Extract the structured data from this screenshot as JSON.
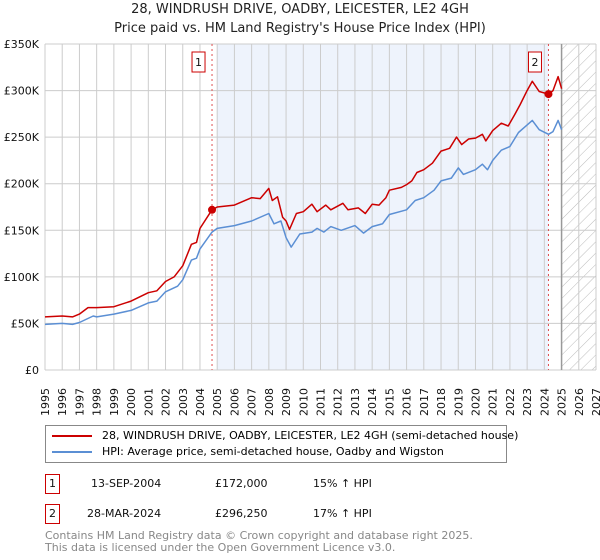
{
  "title": "28, WINDRUSH DRIVE, OADBY, LEICESTER, LE2 4GH",
  "subtitle": "Price paid vs. HM Land Registry's House Price Index (HPI)",
  "colors": {
    "property": "#cc0000",
    "hpi": "#5b8fd4",
    "shade": "#eef3fc"
  },
  "chart_data": {
    "type": "line",
    "title": "28, WINDRUSH DRIVE, OADBY, LEICESTER, LE2 4GH",
    "xlim": [
      1995,
      2027
    ],
    "ylim": [
      0,
      350000
    ],
    "y_ticks": [
      {
        "v": 0,
        "l": "£0"
      },
      {
        "v": 50000,
        "l": "£50K"
      },
      {
        "v": 100000,
        "l": "£100K"
      },
      {
        "v": 150000,
        "l": "£150K"
      },
      {
        "v": 200000,
        "l": "£200K"
      },
      {
        "v": 250000,
        "l": "£250K"
      },
      {
        "v": 300000,
        "l": "£300K"
      },
      {
        "v": 350000,
        "l": "£350K"
      }
    ],
    "x_ticks": [
      "1995",
      "1996",
      "1997",
      "1998",
      "1999",
      "2000",
      "2001",
      "2002",
      "2003",
      "2004",
      "2005",
      "2006",
      "2007",
      "2008",
      "2009",
      "2010",
      "2011",
      "2012",
      "2013",
      "2014",
      "2015",
      "2016",
      "2017",
      "2018",
      "2019",
      "2020",
      "2021",
      "2022",
      "2023",
      "2024",
      "2025",
      "2026",
      "2027"
    ],
    "shaded_range": [
      2005.0,
      2024.24
    ],
    "forecast_hatch_from": 2025.0,
    "series": [
      {
        "name": "28, WINDRUSH DRIVE, OADBY, LEICESTER, LE2 4GH (semi-detached house)",
        "color": "#cc0000",
        "points": [
          [
            1995,
            57000
          ],
          [
            1996,
            58000
          ],
          [
            1996.6,
            57000
          ],
          [
            1997,
            60000
          ],
          [
            1997.5,
            67000
          ],
          [
            1998,
            67000
          ],
          [
            1999,
            68000
          ],
          [
            2000,
            74000
          ],
          [
            2001,
            83000
          ],
          [
            2001.5,
            85000
          ],
          [
            2002,
            95000
          ],
          [
            2002.5,
            100000
          ],
          [
            2003,
            112000
          ],
          [
            2003.5,
            135000
          ],
          [
            2003.8,
            137000
          ],
          [
            2004,
            152000
          ],
          [
            2004.7,
            172000
          ],
          [
            2005,
            175000
          ],
          [
            2006,
            177000
          ],
          [
            2007,
            185000
          ],
          [
            2007.5,
            184000
          ],
          [
            2008,
            195000
          ],
          [
            2008.2,
            182000
          ],
          [
            2008.5,
            186000
          ],
          [
            2008.8,
            164000
          ],
          [
            2009,
            160000
          ],
          [
            2009.2,
            151000
          ],
          [
            2009.6,
            168000
          ],
          [
            2010,
            170000
          ],
          [
            2010.5,
            178000
          ],
          [
            2010.8,
            170000
          ],
          [
            2011.3,
            177000
          ],
          [
            2011.6,
            172000
          ],
          [
            2012.3,
            179000
          ],
          [
            2012.6,
            172000
          ],
          [
            2013.2,
            174000
          ],
          [
            2013.6,
            168000
          ],
          [
            2014,
            178000
          ],
          [
            2014.4,
            177000
          ],
          [
            2014.8,
            185000
          ],
          [
            2015,
            193000
          ],
          [
            2015.7,
            196000
          ],
          [
            2016,
            199000
          ],
          [
            2016.3,
            203000
          ],
          [
            2016.6,
            212000
          ],
          [
            2017,
            215000
          ],
          [
            2017.5,
            222000
          ],
          [
            2018,
            235000
          ],
          [
            2018.5,
            238000
          ],
          [
            2018.9,
            250000
          ],
          [
            2019.2,
            242000
          ],
          [
            2019.6,
            248000
          ],
          [
            2020,
            249000
          ],
          [
            2020.4,
            253000
          ],
          [
            2020.6,
            246000
          ],
          [
            2021,
            257000
          ],
          [
            2021.5,
            265000
          ],
          [
            2021.9,
            262000
          ],
          [
            2022.3,
            275000
          ],
          [
            2022.6,
            285000
          ],
          [
            2023,
            300000
          ],
          [
            2023.3,
            310000
          ],
          [
            2023.7,
            299000
          ],
          [
            2024.24,
            296250
          ],
          [
            2024.5,
            300000
          ],
          [
            2024.8,
            315000
          ],
          [
            2025,
            302000
          ]
        ]
      },
      {
        "name": "HPI: Average price, semi-detached house, Oadby and Wigston",
        "color": "#5b8fd4",
        "points": [
          [
            1995,
            49000
          ],
          [
            1996,
            50000
          ],
          [
            1996.6,
            49000
          ],
          [
            1997,
            51000
          ],
          [
            1997.8,
            58000
          ],
          [
            1998,
            57000
          ],
          [
            1999,
            60000
          ],
          [
            2000,
            64000
          ],
          [
            2001,
            72000
          ],
          [
            2001.5,
            74000
          ],
          [
            2002,
            84000
          ],
          [
            2002.7,
            90000
          ],
          [
            2003,
            97000
          ],
          [
            2003.5,
            118000
          ],
          [
            2003.8,
            120000
          ],
          [
            2004,
            130000
          ],
          [
            2004.7,
            148000
          ],
          [
            2005,
            152000
          ],
          [
            2006,
            155000
          ],
          [
            2007,
            160000
          ],
          [
            2008,
            168000
          ],
          [
            2008.3,
            157000
          ],
          [
            2008.7,
            160000
          ],
          [
            2009,
            142000
          ],
          [
            2009.3,
            132000
          ],
          [
            2009.8,
            146000
          ],
          [
            2010.5,
            148000
          ],
          [
            2010.8,
            152000
          ],
          [
            2011.2,
            148000
          ],
          [
            2011.6,
            154000
          ],
          [
            2012.2,
            150000
          ],
          [
            2013,
            155000
          ],
          [
            2013.5,
            147000
          ],
          [
            2014,
            154000
          ],
          [
            2014.6,
            157000
          ],
          [
            2015,
            167000
          ],
          [
            2016,
            172000
          ],
          [
            2016.5,
            182000
          ],
          [
            2017,
            185000
          ],
          [
            2017.6,
            193000
          ],
          [
            2018,
            203000
          ],
          [
            2018.6,
            206000
          ],
          [
            2019,
            217000
          ],
          [
            2019.3,
            210000
          ],
          [
            2020,
            215000
          ],
          [
            2020.4,
            221000
          ],
          [
            2020.7,
            215000
          ],
          [
            2021,
            225000
          ],
          [
            2021.5,
            236000
          ],
          [
            2022,
            240000
          ],
          [
            2022.5,
            255000
          ],
          [
            2023.3,
            268000
          ],
          [
            2023.7,
            258000
          ],
          [
            2024.24,
            253000
          ],
          [
            2024.5,
            256000
          ],
          [
            2024.8,
            268000
          ],
          [
            2025,
            258000
          ]
        ]
      }
    ],
    "markers": [
      {
        "label": "1",
        "x": 2004.7,
        "y": 172000
      },
      {
        "label": "2",
        "x": 2024.24,
        "y": 296250
      }
    ]
  },
  "legend": {
    "property": "28, WINDRUSH DRIVE, OADBY, LEICESTER, LE2 4GH (semi-detached house)",
    "hpi": "HPI: Average price, semi-detached house, Oadby and Wigston"
  },
  "transactions": [
    {
      "num": "1",
      "date": "13-SEP-2004",
      "price": "£172,000",
      "hpi": "15% ↑ HPI"
    },
    {
      "num": "2",
      "date": "28-MAR-2024",
      "price": "£296,250",
      "hpi": "17% ↑ HPI"
    }
  ],
  "footer": [
    "Contains HM Land Registry data © Crown copyright and database right 2025.",
    "This data is licensed under the Open Government Licence v3.0."
  ]
}
